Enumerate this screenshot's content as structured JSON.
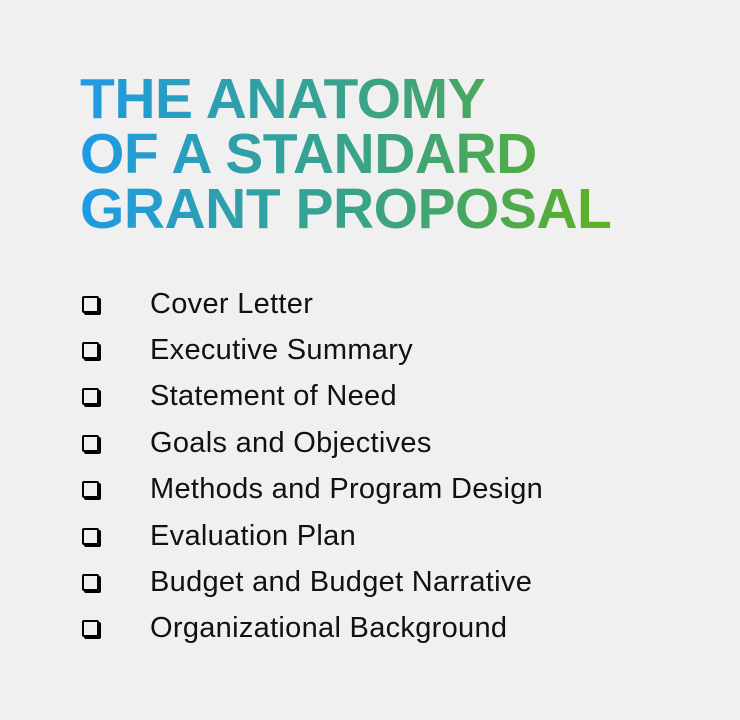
{
  "title": {
    "lines": [
      "THE ANATOMY",
      "OF A STANDARD",
      "GRANT PROPOSAL"
    ],
    "gradient_colors": [
      "#1e9be6",
      "#5fb419"
    ]
  },
  "checklist": {
    "icon": "checkbox-empty-icon",
    "items": [
      {
        "label": "Cover Letter"
      },
      {
        "label": "Executive Summary"
      },
      {
        "label": "Statement of Need"
      },
      {
        "label": "Goals and Objectives"
      },
      {
        "label": "Methods and Program Design"
      },
      {
        "label": "Evaluation Plan"
      },
      {
        "label": "Budget and Budget Narrative"
      },
      {
        "label": "Organizational Background"
      }
    ]
  }
}
